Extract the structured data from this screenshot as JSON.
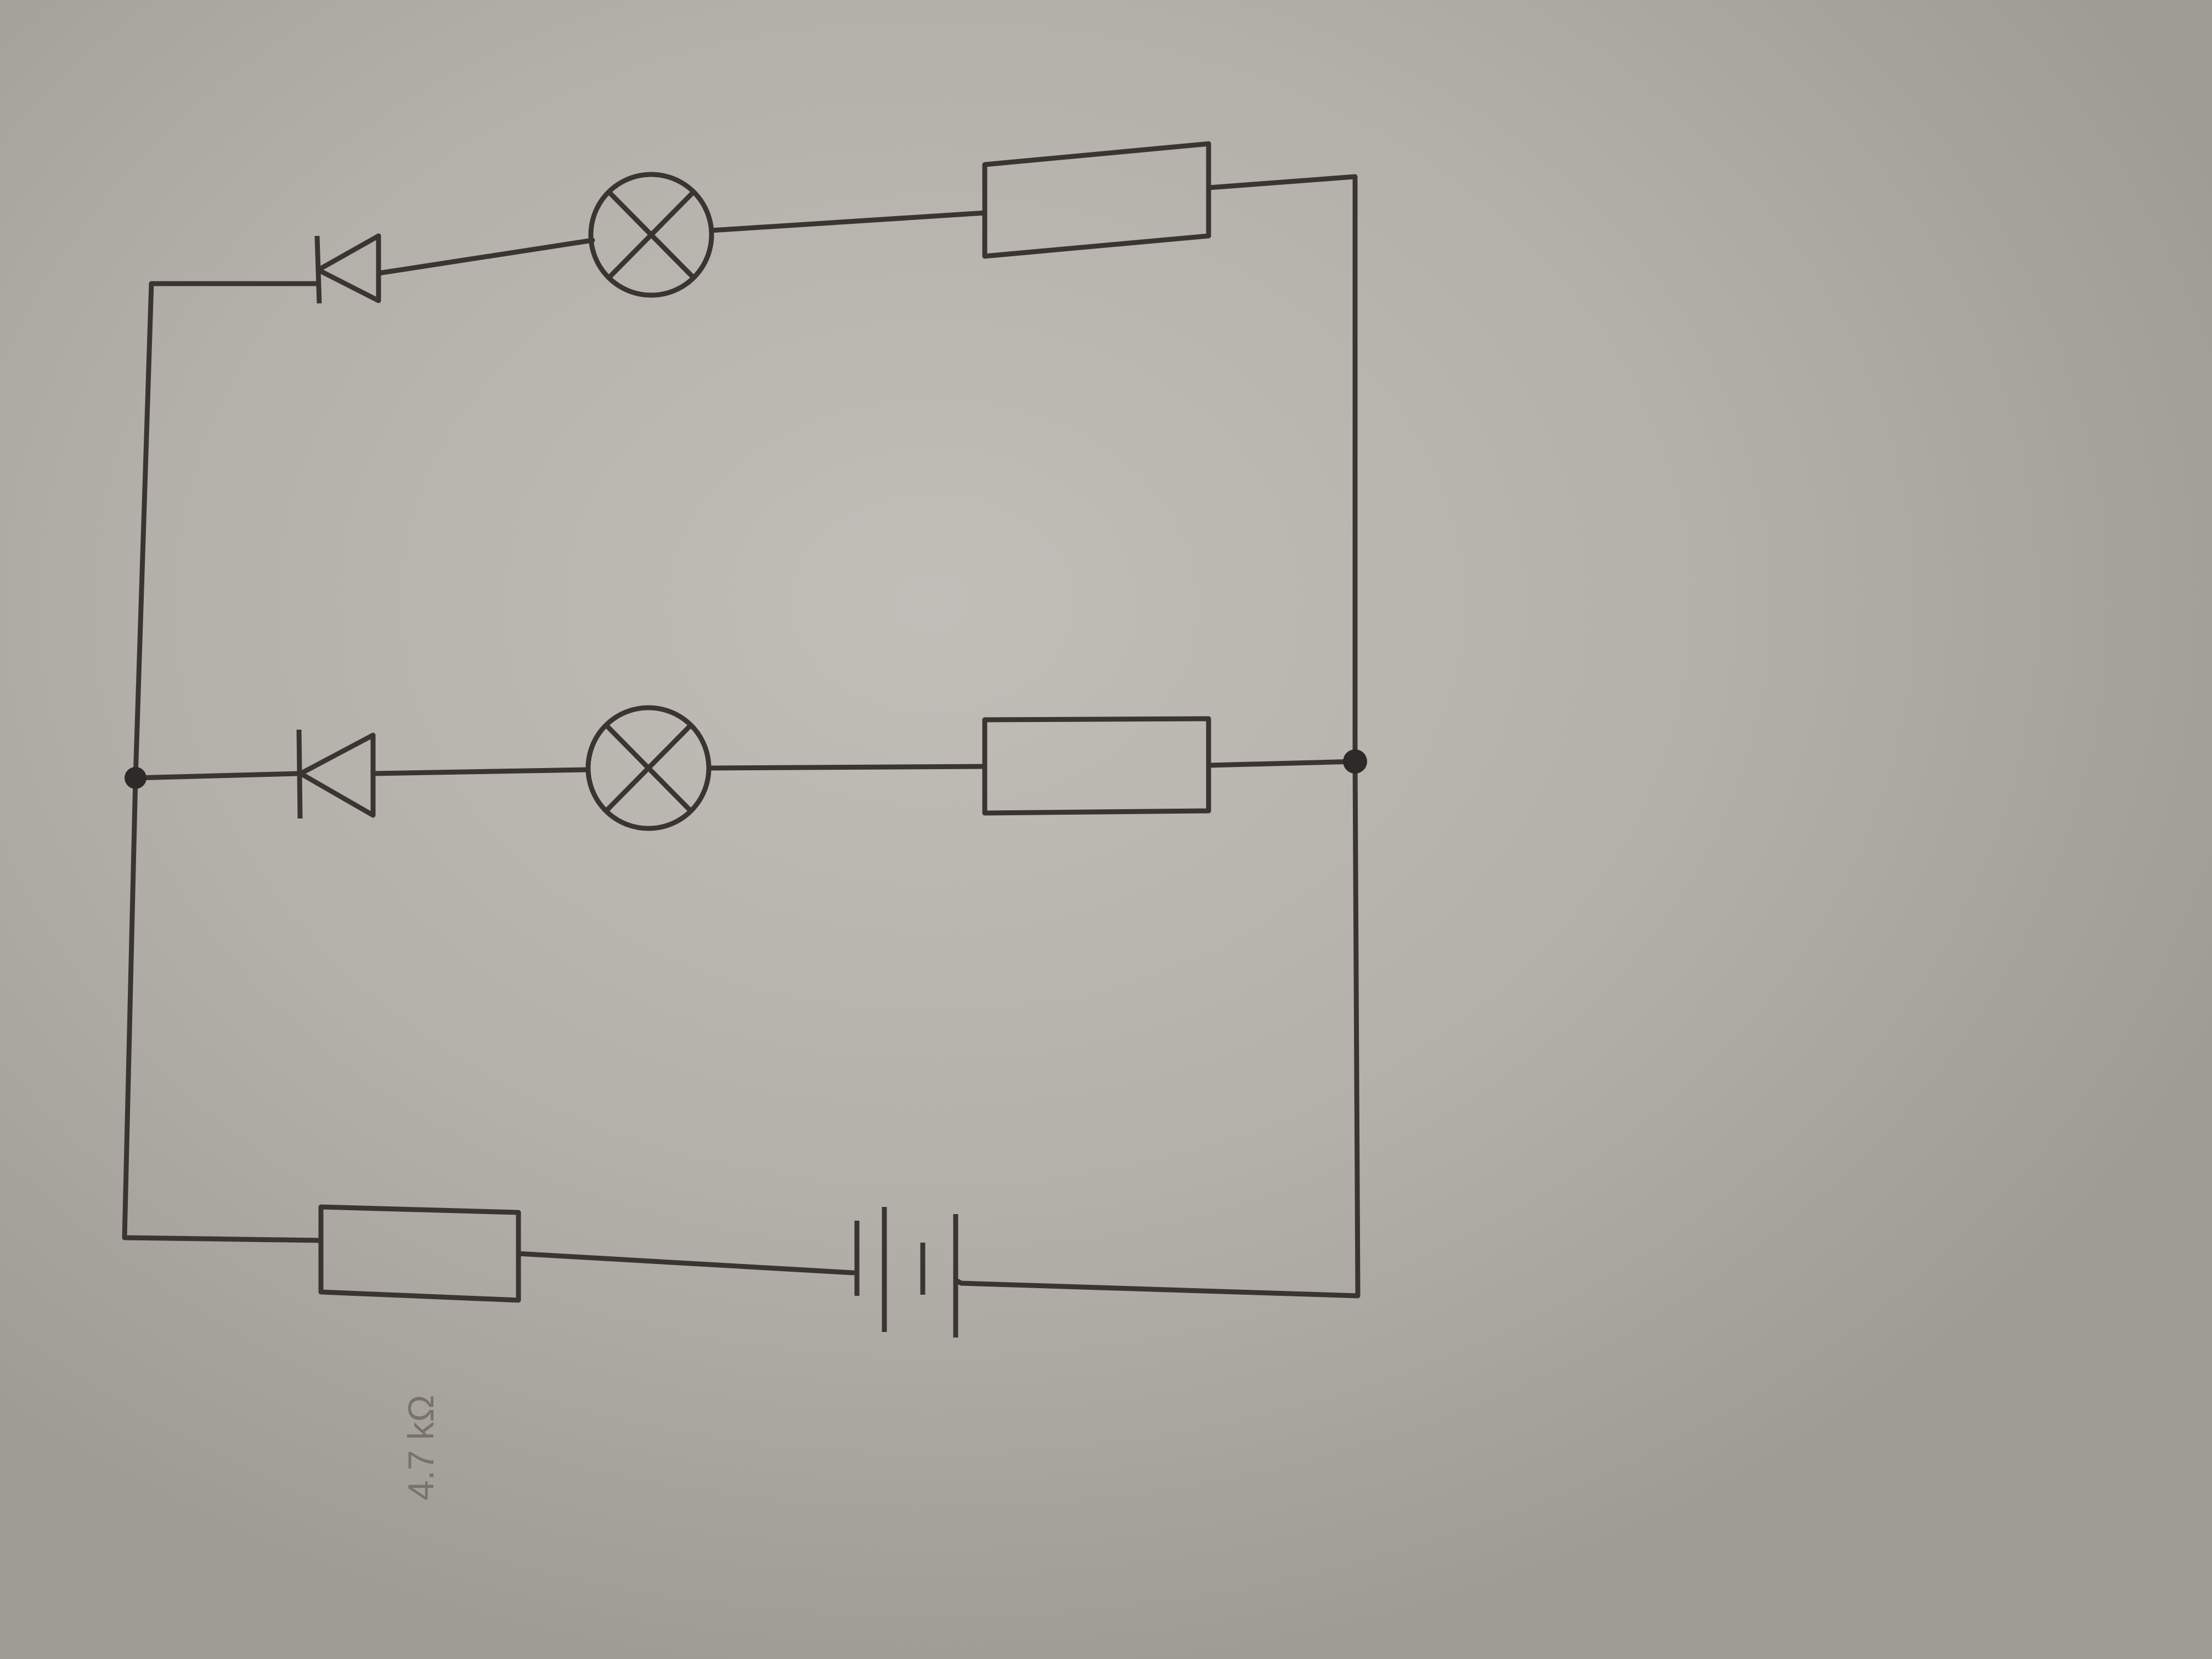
{
  "diagram": {
    "type": "circuit-schematic",
    "resistor_label": "4.7 kΩ",
    "components": {
      "battery": "battery-icon",
      "series_resistor": "resistor-icon",
      "diodes": [
        "diode-icon",
        "diode-icon"
      ],
      "lamps": [
        "lamp-icon",
        "lamp-icon"
      ],
      "branch_resistors": [
        "resistor-icon",
        "resistor-icon"
      ]
    },
    "colors": {
      "ink": "#3a3532",
      "paper": "#b8b5ae",
      "label": "#77726c"
    }
  }
}
